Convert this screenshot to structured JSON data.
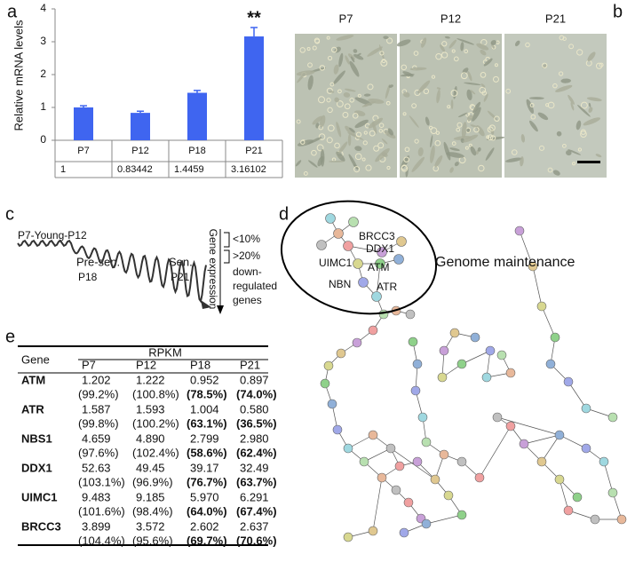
{
  "panel_labels": [
    "a",
    "b",
    "c",
    "d",
    "e"
  ],
  "chart_data": {
    "type": "bar",
    "ylabel": "Relative mRNA levels",
    "categories": [
      "P7",
      "P12",
      "P18",
      "P21"
    ],
    "values": [
      1,
      0.83442,
      1.4459,
      3.16102
    ],
    "errors": [
      0.05,
      0.05,
      0.07,
      0.27
    ],
    "color": "#3f65f0",
    "ylim": [
      0,
      4
    ],
    "yticks": [
      0,
      1,
      2,
      3,
      4
    ],
    "annotation": "**"
  },
  "micrographs": {
    "labels": [
      "P7",
      "P12",
      "P21"
    ]
  },
  "schematic": {
    "stages": [
      "P7-Young-P12",
      "Pre-sen.",
      "P18",
      "Sen.",
      "P21"
    ],
    "axis_label": "Gene expression",
    "legend": [
      "<10%",
      ">20%",
      "down-",
      "regulated",
      "genes"
    ]
  },
  "network": {
    "genes": [
      "BRCC3",
      "DDX1",
      "UIMC1",
      "ATM",
      "NBN",
      "ATR"
    ],
    "cluster_label": "Genome maintenance"
  },
  "table": {
    "group_header": "RPKM",
    "columns": [
      "Gene",
      "P7",
      "P12",
      "P18",
      "P21"
    ],
    "rows": [
      {
        "gene": "ATM",
        "values": [
          "1.202",
          "1.222",
          "0.952",
          "0.897"
        ],
        "percents": [
          "(99.2%)",
          "(100.8%)",
          "(78.5%)",
          "(74.0%)"
        ]
      },
      {
        "gene": "ATR",
        "values": [
          "1.587",
          "1.593",
          "1.004",
          "0.580"
        ],
        "percents": [
          "(99.8%)",
          "(100.2%)",
          "(63.1%)",
          "(36.5%)"
        ]
      },
      {
        "gene": "NBS1",
        "values": [
          "4.659",
          "4.890",
          "2.799",
          "2.980"
        ],
        "percents": [
          "(97.6%)",
          "(102.4%)",
          "(58.6%)",
          "(62.4%)"
        ]
      },
      {
        "gene": "DDX1",
        "values": [
          "52.63",
          "49.45",
          "39.17",
          "32.49"
        ],
        "percents": [
          "(103.1%)",
          "(96.9%)",
          "(76.7%)",
          "(63.7%)"
        ]
      },
      {
        "gene": "UIMC1",
        "values": [
          "9.483",
          "9.185",
          "5.970",
          "6.291"
        ],
        "percents": [
          "(101.6%)",
          "(98.4%)",
          "(64.0%)",
          "(67.4%)"
        ]
      },
      {
        "gene": "BRCC3",
        "values": [
          "3.899",
          "3.572",
          "2.602",
          "2.637"
        ],
        "percents": [
          "(104.4%)",
          "(95.6%)",
          "(69.7%)",
          "(70.6%)"
        ]
      }
    ]
  }
}
